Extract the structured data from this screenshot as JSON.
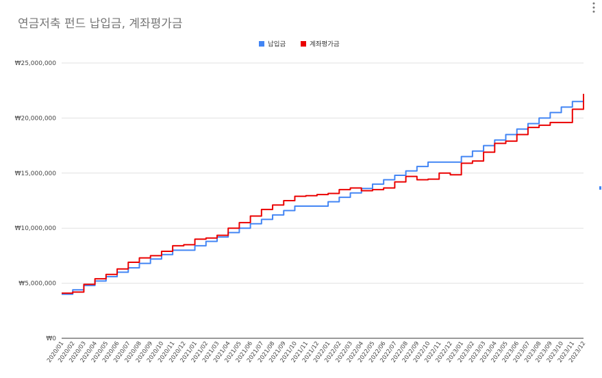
{
  "chart_data": {
    "type": "line",
    "title": "연금저축 펀드 납입금, 계좌평가금",
    "xlabel": "",
    "ylabel": "",
    "step": true,
    "legend_position": "top",
    "grid": true,
    "ylim": [
      0,
      25000000
    ],
    "y_ticks": [
      "₩0",
      "₩5,000,000",
      "₩10,000,000",
      "₩15,000,000",
      "₩20,000,000",
      "₩25,000,000"
    ],
    "y_tick_values": [
      0,
      5000000,
      10000000,
      15000000,
      20000000,
      25000000
    ],
    "categories": [
      "2020/01",
      "2020/02",
      "2020/03",
      "2020/04",
      "2020/05",
      "2020/06",
      "2020/07",
      "2020/08",
      "2020/09",
      "2020/10",
      "2020/11",
      "2020/12",
      "2021/01",
      "2021/02",
      "2021/03",
      "2021/04",
      "2021/05",
      "2021/06",
      "2021/07",
      "2021/08",
      "2021/09",
      "2021/10",
      "2021/11",
      "2021/12",
      "2022/01",
      "2022/02",
      "2022/03",
      "2022/04",
      "2022/05",
      "2022/06",
      "2022/07",
      "2022/08",
      "2022/09",
      "2022/10",
      "2022/11",
      "2022/12",
      "2023/01",
      "2023/02",
      "2023/03",
      "2023/04",
      "2023/05",
      "2023/06",
      "2023/07",
      "2023/08",
      "2023/09",
      "2023/10",
      "2023/11",
      "2023/12"
    ],
    "series": [
      {
        "name": "납입금",
        "color": "#4285f4",
        "values": [
          4000000,
          4400000,
          4800000,
          5200000,
          5600000,
          6000000,
          6400000,
          6800000,
          7200000,
          7600000,
          8000000,
          8000000,
          8400000,
          8800000,
          9200000,
          9600000,
          10000000,
          10400000,
          10800000,
          11200000,
          11600000,
          12000000,
          12000000,
          12000000,
          12400000,
          12800000,
          13200000,
          13600000,
          14000000,
          14400000,
          14800000,
          15200000,
          15600000,
          16000000,
          16000000,
          16000000,
          16500000,
          17000000,
          17500000,
          18000000,
          18500000,
          19000000,
          19500000,
          20000000,
          20500000,
          21000000,
          21500000,
          22000000
        ]
      },
      {
        "name": "계좌평가금",
        "color": "#ea0000",
        "values": [
          4100000,
          4200000,
          4900000,
          5400000,
          5800000,
          6300000,
          6900000,
          7300000,
          7500000,
          7900000,
          8400000,
          8500000,
          9000000,
          9100000,
          9350000,
          10000000,
          10500000,
          11100000,
          11700000,
          12100000,
          12500000,
          12900000,
          12950000,
          13050000,
          13150000,
          13500000,
          13650000,
          13400000,
          13500000,
          13650000,
          14200000,
          14700000,
          14400000,
          14450000,
          15000000,
          14850000,
          15900000,
          16100000,
          16900000,
          17700000,
          17900000,
          18500000,
          19150000,
          19350000,
          19600000,
          19600000,
          20800000,
          22200000
        ]
      }
    ]
  }
}
